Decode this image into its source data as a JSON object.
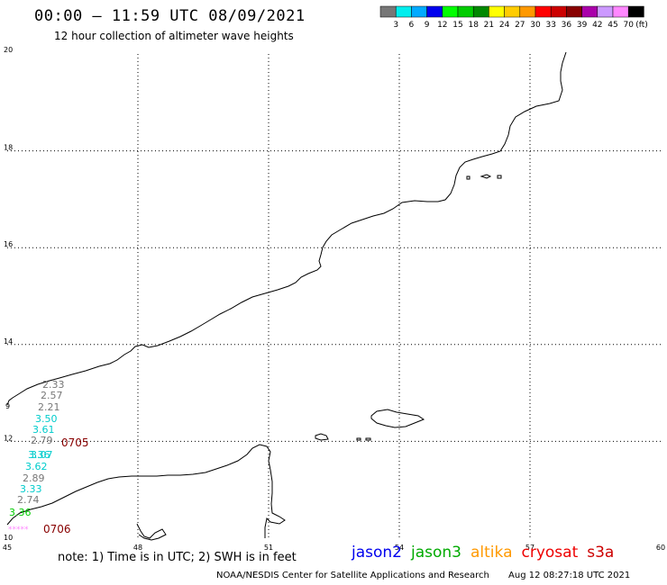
{
  "header": {
    "title": "00:00 – 11:59 UTC 08/09/2021",
    "subtitle": "12 hour collection of altimeter wave heights"
  },
  "scale": {
    "labels": [
      "3",
      "6",
      "9",
      "12",
      "15",
      "18",
      "21",
      "24",
      "27",
      "30",
      "33",
      "36",
      "39",
      "42",
      "45",
      "70"
    ],
    "unit": "(ft)",
    "colors": [
      "#777777",
      "#00eeee",
      "#00aaff",
      "#0000ee",
      "#00ff00",
      "#00cc00",
      "#008800",
      "#ffff00",
      "#ffcc00",
      "#ff9900",
      "#ff0000",
      "#cc0000",
      "#880000",
      "#aa00aa",
      "#cc99ff",
      "#ff88ff",
      "#000000"
    ]
  },
  "axes": {
    "x_ticks": [
      "45",
      "48",
      "51",
      "54",
      "57",
      "60"
    ],
    "y_ticks": [
      "20",
      "18",
      "16",
      "14",
      "12",
      "10"
    ],
    "y_partial": "9"
  },
  "track_labels": [
    {
      "id": "0705",
      "value": "0705",
      "color": "#880000"
    },
    {
      "id": "0706",
      "value": "0706",
      "color": "#880000"
    },
    {
      "id": "stars",
      "value": "*****",
      "color": "#ff88ff"
    }
  ],
  "wave_heights": [
    {
      "value": "2.33",
      "color": "#777777"
    },
    {
      "value": "2.57",
      "color": "#777777"
    },
    {
      "value": "2.21",
      "color": "#777777"
    },
    {
      "value": "3.50",
      "color": "#00cccc"
    },
    {
      "value": "3.61",
      "color": "#00cccc"
    },
    {
      "value": "2.79",
      "color": "#777777"
    },
    {
      "value": "3.07",
      "color": "#00cccc"
    },
    {
      "value": "3.36",
      "color": "#00cccc"
    },
    {
      "value": "3.62",
      "color": "#00cccc"
    },
    {
      "value": "2.89",
      "color": "#777777"
    },
    {
      "value": "3.33",
      "color": "#00cccc"
    },
    {
      "value": "2.74",
      "color": "#777777"
    },
    {
      "value": "3.36",
      "color": "#00cc00"
    }
  ],
  "footer": {
    "note": "note: 1) Time is in UTC; 2) SWH is in feet",
    "satellites": [
      {
        "name": "jason2",
        "color": "#0000ee"
      },
      {
        "name": "jason3",
        "color": "#00aa00"
      },
      {
        "name": "altika",
        "color": "#ff9900"
      },
      {
        "name": "cryosat",
        "color": "#ee0000"
      },
      {
        "name": "s3a",
        "color": "#cc0000"
      }
    ],
    "credit": "NOAA/NESDIS Center for Satellite Applications and Research",
    "timestamp": "Aug 12 08:27:18 UTC 2021"
  }
}
